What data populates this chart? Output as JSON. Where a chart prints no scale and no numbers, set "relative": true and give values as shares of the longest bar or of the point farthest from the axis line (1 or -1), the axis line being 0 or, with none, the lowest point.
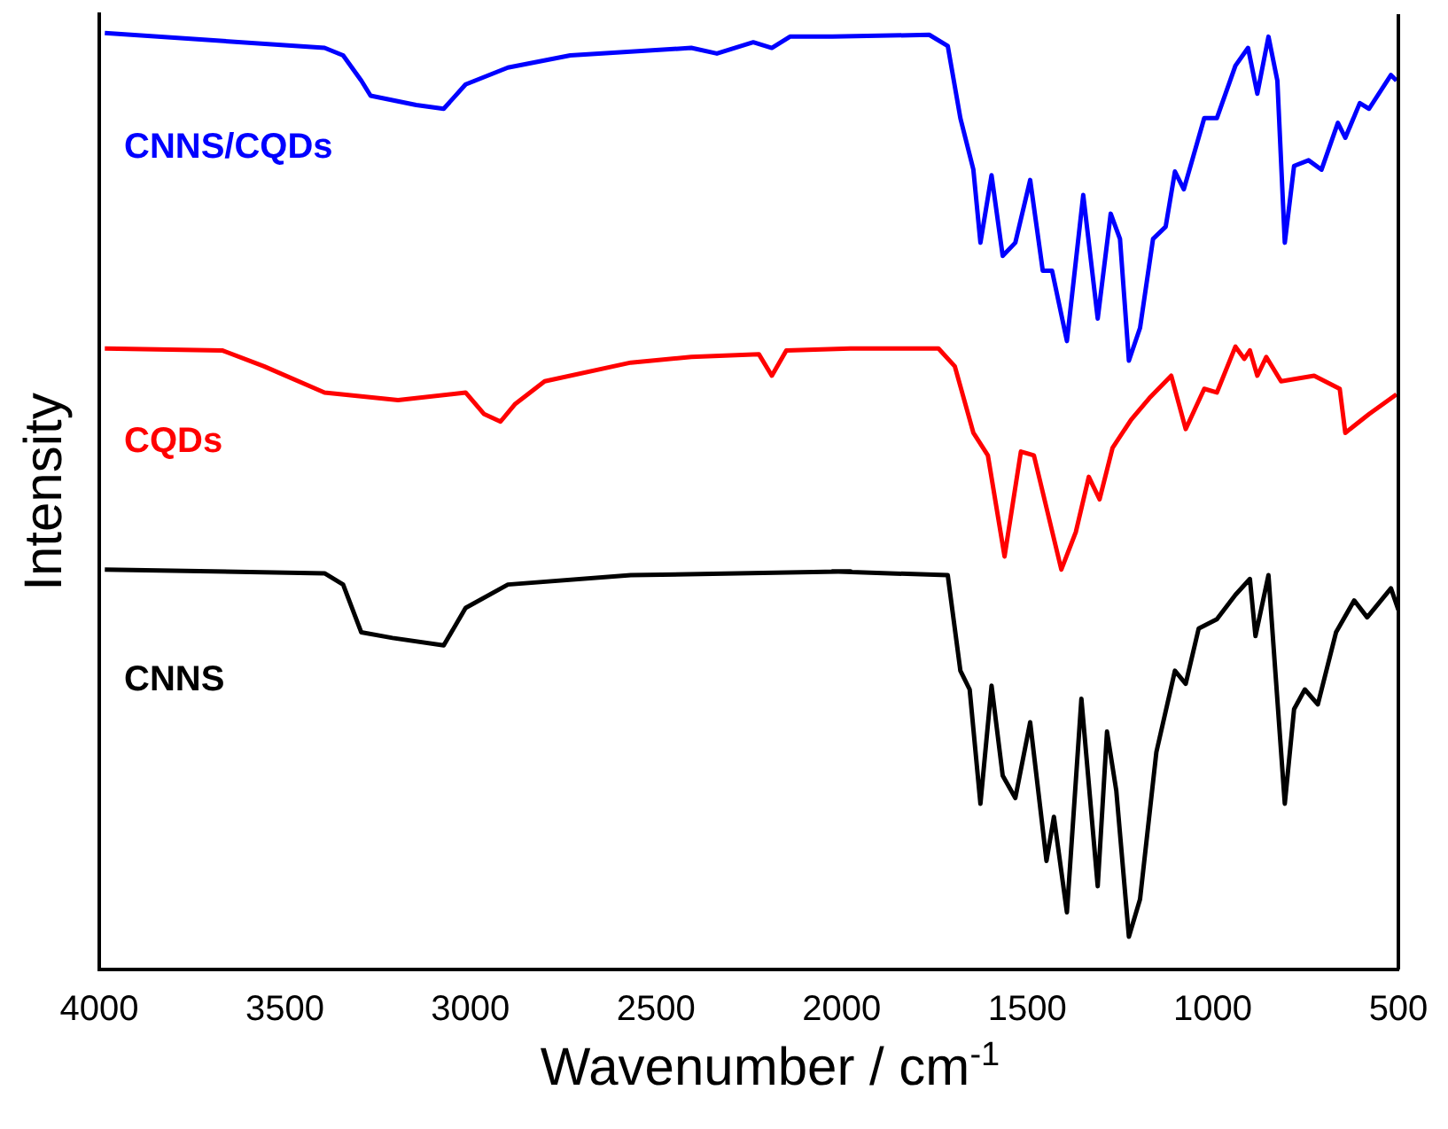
{
  "chart_data": {
    "type": "line",
    "xlabel": "Wavenumber / cm$^{-1}$",
    "ylabel": "Intensity",
    "relative": true,
    "xlim": [
      4000,
      500
    ],
    "xticks": [
      4000,
      3500,
      3000,
      2500,
      2000,
      1500,
      1000,
      500
    ],
    "grid": false,
    "legend": false,
    "marker": "none",
    "line_style": "solid",
    "series": [
      {
        "name": "CNNS/CQDs",
        "color": "#0000ff",
        "x": [
          3985,
          3393,
          3343,
          3294,
          3269,
          3146,
          3072,
          3013,
          2899,
          2731,
          2405,
          2336,
          2238,
          2188,
          2139,
          2025,
          1764,
          1714,
          1680,
          1645,
          1626,
          1596,
          1566,
          1532,
          1492,
          1458,
          1433,
          1393,
          1349,
          1310,
          1275,
          1250,
          1226,
          1196,
          1161,
          1127,
          1102,
          1078,
          1023,
          989,
          939,
          905,
          880,
          850,
          826,
          806,
          781,
          742,
          707,
          663,
          643,
          604,
          579,
          520,
          505
        ],
        "values": [
          1.0,
          0.984,
          0.976,
          0.949,
          0.933,
          0.923,
          0.919,
          0.945,
          0.963,
          0.976,
          0.984,
          0.978,
          0.99,
          0.984,
          0.996,
          0.996,
          0.998,
          0.986,
          0.909,
          0.854,
          0.776,
          0.848,
          0.762,
          0.776,
          0.843,
          0.746,
          0.746,
          0.671,
          0.827,
          0.695,
          0.807,
          0.78,
          0.65,
          0.685,
          0.78,
          0.793,
          0.852,
          0.833,
          0.909,
          0.909,
          0.965,
          0.984,
          0.935,
          0.996,
          0.949,
          0.776,
          0.858,
          0.864,
          0.854,
          0.904,
          0.888,
          0.925,
          0.919,
          0.955,
          0.949
        ]
      },
      {
        "name": "CQDs",
        "color": "#ff0000",
        "x": [
          3985,
          3669,
          3556,
          3393,
          3195,
          3013,
          2963,
          2919,
          2879,
          2800,
          2568,
          2405,
          2223,
          2188,
          2149,
          1976,
          1739,
          1695,
          1645,
          1606,
          1561,
          1517,
          1482,
          1408,
          1369,
          1334,
          1305,
          1270,
          1220,
          1171,
          1112,
          1073,
          1023,
          989,
          939,
          915,
          900,
          880,
          856,
          816,
          727,
          658,
          643,
          579,
          505
        ],
        "values": [
          0.663,
          0.661,
          0.644,
          0.616,
          0.608,
          0.616,
          0.593,
          0.585,
          0.604,
          0.628,
          0.648,
          0.654,
          0.657,
          0.634,
          0.661,
          0.663,
          0.663,
          0.644,
          0.573,
          0.549,
          0.441,
          0.553,
          0.549,
          0.427,
          0.467,
          0.526,
          0.502,
          0.557,
          0.587,
          0.61,
          0.634,
          0.577,
          0.62,
          0.616,
          0.665,
          0.652,
          0.661,
          0.634,
          0.654,
          0.628,
          0.634,
          0.62,
          0.573,
          0.593,
          0.614
        ]
      },
      {
        "name": "CNNS",
        "color": "#000000",
        "x": [
          3985,
          3393,
          3343,
          3294,
          3210,
          3072,
          3013,
          2899,
          2568,
          1976,
          2025,
          1714,
          1680,
          1655,
          1626,
          1596,
          1566,
          1532,
          1492,
          1448,
          1428,
          1393,
          1354,
          1310,
          1285,
          1260,
          1226,
          1196,
          1152,
          1102,
          1073,
          1038,
          989,
          939,
          900,
          885,
          850,
          806,
          781,
          752,
          717,
          668,
          619,
          584,
          520,
          500
        ],
        "values": [
          0.427,
          0.423,
          0.411,
          0.36,
          0.354,
          0.346,
          0.386,
          0.411,
          0.421,
          0.425,
          0.425,
          0.421,
          0.319,
          0.299,
          0.177,
          0.303,
          0.207,
          0.183,
          0.264,
          0.116,
          0.163,
          0.061,
          0.289,
          0.089,
          0.254,
          0.191,
          0.035,
          0.075,
          0.232,
          0.319,
          0.305,
          0.364,
          0.374,
          0.4,
          0.417,
          0.356,
          0.421,
          0.177,
          0.278,
          0.299,
          0.283,
          0.36,
          0.394,
          0.376,
          0.407,
          0.384
        ]
      }
    ]
  }
}
